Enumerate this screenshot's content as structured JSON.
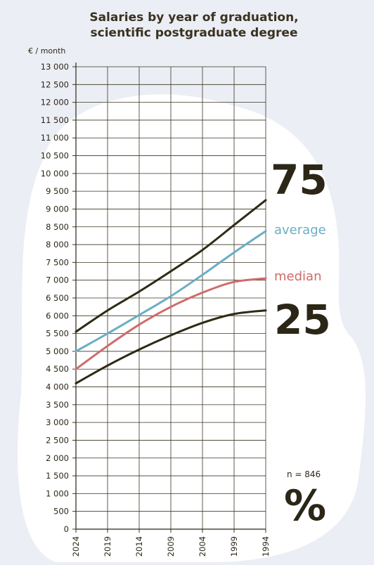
{
  "title_line1": "Salaries by year of graduation,",
  "title_line2": "scientific postgraduate degree",
  "unit_label": "€ / month",
  "n_label": "n = 846",
  "percent_symbol": "%",
  "chart_data": {
    "type": "line",
    "title": "Salaries by year of graduation, scientific postgraduate degree",
    "ylabel": "€ / month",
    "ylim": [
      0,
      13000
    ],
    "y_step": 500,
    "xlim": [
      2024,
      1994
    ],
    "x_ticks": [
      2024,
      2019,
      2014,
      2009,
      2004,
      1999,
      1994
    ],
    "x_tick_labels": [
      "2024",
      "2019",
      "2014",
      "2009",
      "2004",
      "1999",
      "1994"
    ],
    "y_tick_labels": [
      "0",
      "500",
      "1 000",
      "1 500",
      "2 000",
      "2 500",
      "3 000",
      "3 500",
      "4 000",
      "4 500",
      "5 000",
      "5 500",
      "6 000",
      "6 500",
      "7 000",
      "7 500",
      "8 000",
      "8 500",
      "9 000",
      "9 500",
      "10 000",
      "10 500",
      "11 000",
      "11 500",
      "12 000",
      "12 500",
      "13 000"
    ],
    "grid": true,
    "x": [
      2024,
      2019,
      2014,
      2009,
      2004,
      1999,
      1994
    ],
    "series": [
      {
        "name": "75",
        "color": "#2e2a14",
        "values": [
          5550,
          6150,
          6680,
          7250,
          7850,
          8550,
          9250
        ]
      },
      {
        "name": "average",
        "color": "#6aaec4",
        "values": [
          5000,
          5500,
          6020,
          6550,
          7150,
          7780,
          8380
        ]
      },
      {
        "name": "median",
        "color": "#cf6b6b",
        "values": [
          4500,
          5150,
          5750,
          6250,
          6650,
          6950,
          7050
        ]
      },
      {
        "name": "25",
        "color": "#2e2a14",
        "values": [
          4100,
          4600,
          5050,
          5450,
          5800,
          6050,
          6150
        ]
      }
    ]
  }
}
